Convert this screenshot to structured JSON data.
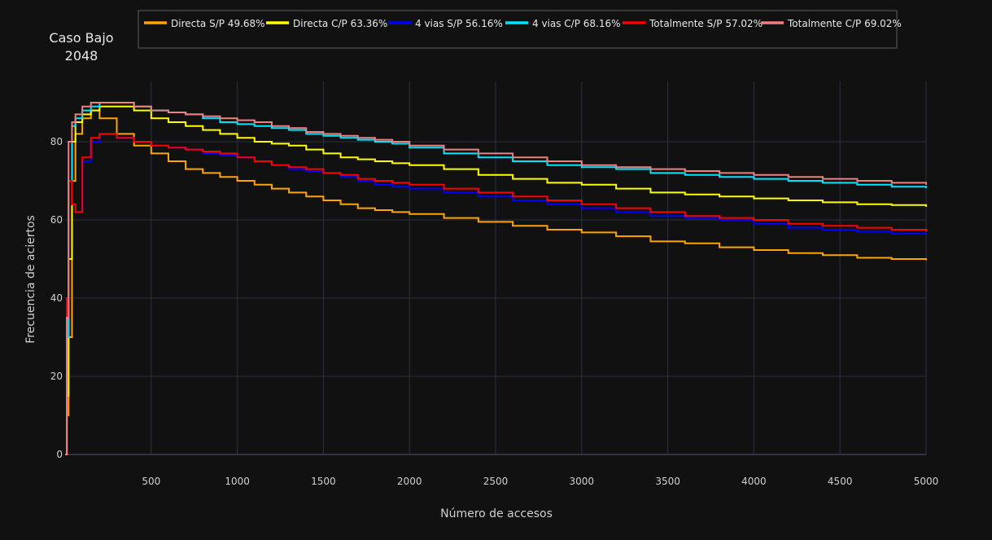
{
  "chart_data": {
    "type": "line",
    "title": [
      "Caso Bajo",
      "2048"
    ],
    "xlabel": "Número de accesos",
    "ylabel": "Frecuencia de aciertos",
    "xlim": [
      0,
      5000
    ],
    "ylim": [
      0,
      95
    ],
    "xticks": [
      500,
      1000,
      1500,
      2000,
      2500,
      3000,
      3500,
      4000,
      4500,
      5000
    ],
    "yticks": [
      0,
      20,
      40,
      60,
      80
    ],
    "grid": true,
    "legend_position": "top",
    "series": [
      {
        "name": "Directa S/P 49.68%",
        "color": "#ffa500",
        "x": [
          0,
          10,
          20,
          40,
          60,
          100,
          150,
          200,
          300,
          400,
          500,
          600,
          700,
          800,
          900,
          1000,
          1100,
          1200,
          1300,
          1400,
          1500,
          1600,
          1700,
          1800,
          1900,
          2000,
          2200,
          2400,
          2600,
          2800,
          3000,
          3200,
          3400,
          3600,
          3800,
          4000,
          4200,
          4400,
          4600,
          4800,
          5000
        ],
        "y": [
          0,
          10,
          30,
          70,
          82,
          86,
          88,
          86,
          82,
          79,
          77,
          75,
          73,
          72,
          71,
          70,
          69,
          68,
          67,
          66,
          65,
          64,
          63,
          62.5,
          62,
          61.5,
          60.5,
          59.5,
          58.5,
          57.5,
          56.8,
          55.8,
          54.5,
          54,
          53,
          52.3,
          51.5,
          51,
          50.3,
          50,
          49.68
        ]
      },
      {
        "name": "Directa C/P 63.36%",
        "color": "#ffff00",
        "x": [
          0,
          10,
          20,
          40,
          60,
          100,
          150,
          200,
          300,
          400,
          500,
          600,
          700,
          800,
          900,
          1000,
          1100,
          1200,
          1300,
          1400,
          1500,
          1600,
          1700,
          1800,
          1900,
          2000,
          2200,
          2400,
          2600,
          2800,
          3000,
          3200,
          3400,
          3600,
          3800,
          4000,
          4200,
          4400,
          4600,
          4800,
          5000
        ],
        "y": [
          0,
          15,
          50,
          80,
          85,
          87,
          88,
          89,
          89,
          88,
          86,
          85,
          84,
          83,
          82,
          81,
          80,
          79.5,
          79,
          78,
          77,
          76,
          75.5,
          75,
          74.5,
          74,
          73,
          71.5,
          70.5,
          69.5,
          69,
          68,
          67,
          66.5,
          66,
          65.5,
          65,
          64.5,
          64,
          63.8,
          63.36
        ]
      },
      {
        "name": "4 vias S/P 56.16%",
        "color": "#0000ff",
        "x": [
          0,
          10,
          20,
          40,
          60,
          100,
          150,
          200,
          300,
          400,
          500,
          600,
          700,
          800,
          900,
          1000,
          1100,
          1200,
          1300,
          1400,
          1500,
          1600,
          1700,
          1800,
          1900,
          2000,
          2200,
          2400,
          2600,
          2800,
          3000,
          3200,
          3400,
          3600,
          3800,
          4000,
          4200,
          4400,
          4600,
          4800,
          5000
        ],
        "y": [
          0,
          40,
          70,
          64,
          62,
          75,
          80,
          82,
          81,
          80,
          79,
          78.5,
          78,
          77,
          76.5,
          76,
          75,
          74,
          73,
          72.5,
          72,
          71,
          70,
          69,
          68.5,
          68,
          67,
          66,
          65,
          64,
          63,
          62,
          61,
          60.5,
          60,
          59,
          58,
          57.5,
          57,
          56.5,
          56.16
        ]
      },
      {
        "name": "4 vias C/P 68.16%",
        "color": "#00e5ff",
        "x": [
          0,
          10,
          20,
          40,
          60,
          100,
          150,
          200,
          300,
          400,
          500,
          600,
          700,
          800,
          900,
          1000,
          1100,
          1200,
          1300,
          1400,
          1500,
          1600,
          1700,
          1800,
          1900,
          2000,
          2200,
          2400,
          2600,
          2800,
          3000,
          3200,
          3400,
          3600,
          3800,
          4000,
          4200,
          4400,
          4600,
          4800,
          5000
        ],
        "y": [
          0,
          30,
          70,
          84,
          86,
          88,
          89,
          90,
          90,
          89,
          88,
          87.5,
          87,
          86,
          85,
          84.5,
          84,
          83.5,
          83,
          82,
          81.5,
          81,
          80.5,
          80,
          79.5,
          78.5,
          77,
          76,
          75,
          74,
          73.5,
          73,
          72,
          71.5,
          71,
          70.5,
          70,
          69.5,
          69,
          68.5,
          68.16
        ]
      },
      {
        "name": "Totalmente S/P 57.02%",
        "color": "#ff0000",
        "x": [
          0,
          10,
          20,
          40,
          60,
          100,
          150,
          200,
          300,
          400,
          500,
          600,
          700,
          800,
          900,
          1000,
          1100,
          1200,
          1300,
          1400,
          1500,
          1600,
          1700,
          1800,
          1900,
          2000,
          2200,
          2400,
          2600,
          2800,
          3000,
          3200,
          3400,
          3600,
          3800,
          4000,
          4200,
          4400,
          4600,
          4800,
          5000
        ],
        "y": [
          0,
          40,
          70,
          64,
          62,
          76,
          81,
          82,
          81,
          80,
          79,
          78.5,
          78,
          77.5,
          77,
          76,
          75,
          74,
          73.5,
          73,
          72,
          71.5,
          70.5,
          70,
          69.5,
          69,
          68,
          67,
          66,
          65,
          64,
          63,
          62,
          61,
          60.5,
          60,
          59,
          58.5,
          58,
          57.5,
          57.02
        ]
      },
      {
        "name": "Totalmente C/P 69.02%",
        "color": "#f08080",
        "x": [
          0,
          10,
          20,
          40,
          60,
          100,
          150,
          200,
          300,
          400,
          500,
          600,
          700,
          800,
          900,
          1000,
          1100,
          1200,
          1300,
          1400,
          1500,
          1600,
          1700,
          1800,
          1900,
          2000,
          2200,
          2400,
          2600,
          2800,
          3000,
          3200,
          3400,
          3600,
          3800,
          4000,
          4200,
          4400,
          4600,
          4800,
          5000
        ],
        "y": [
          0,
          35,
          80,
          85,
          87,
          89,
          90,
          90,
          90,
          89,
          88,
          87.5,
          87,
          86.5,
          86,
          85.5,
          85,
          84,
          83.5,
          82.5,
          82,
          81.5,
          81,
          80.5,
          80,
          79,
          78,
          77,
          76,
          75,
          74,
          73.5,
          73,
          72.5,
          72,
          71.5,
          71,
          70.5,
          70,
          69.5,
          69.02
        ]
      }
    ]
  }
}
